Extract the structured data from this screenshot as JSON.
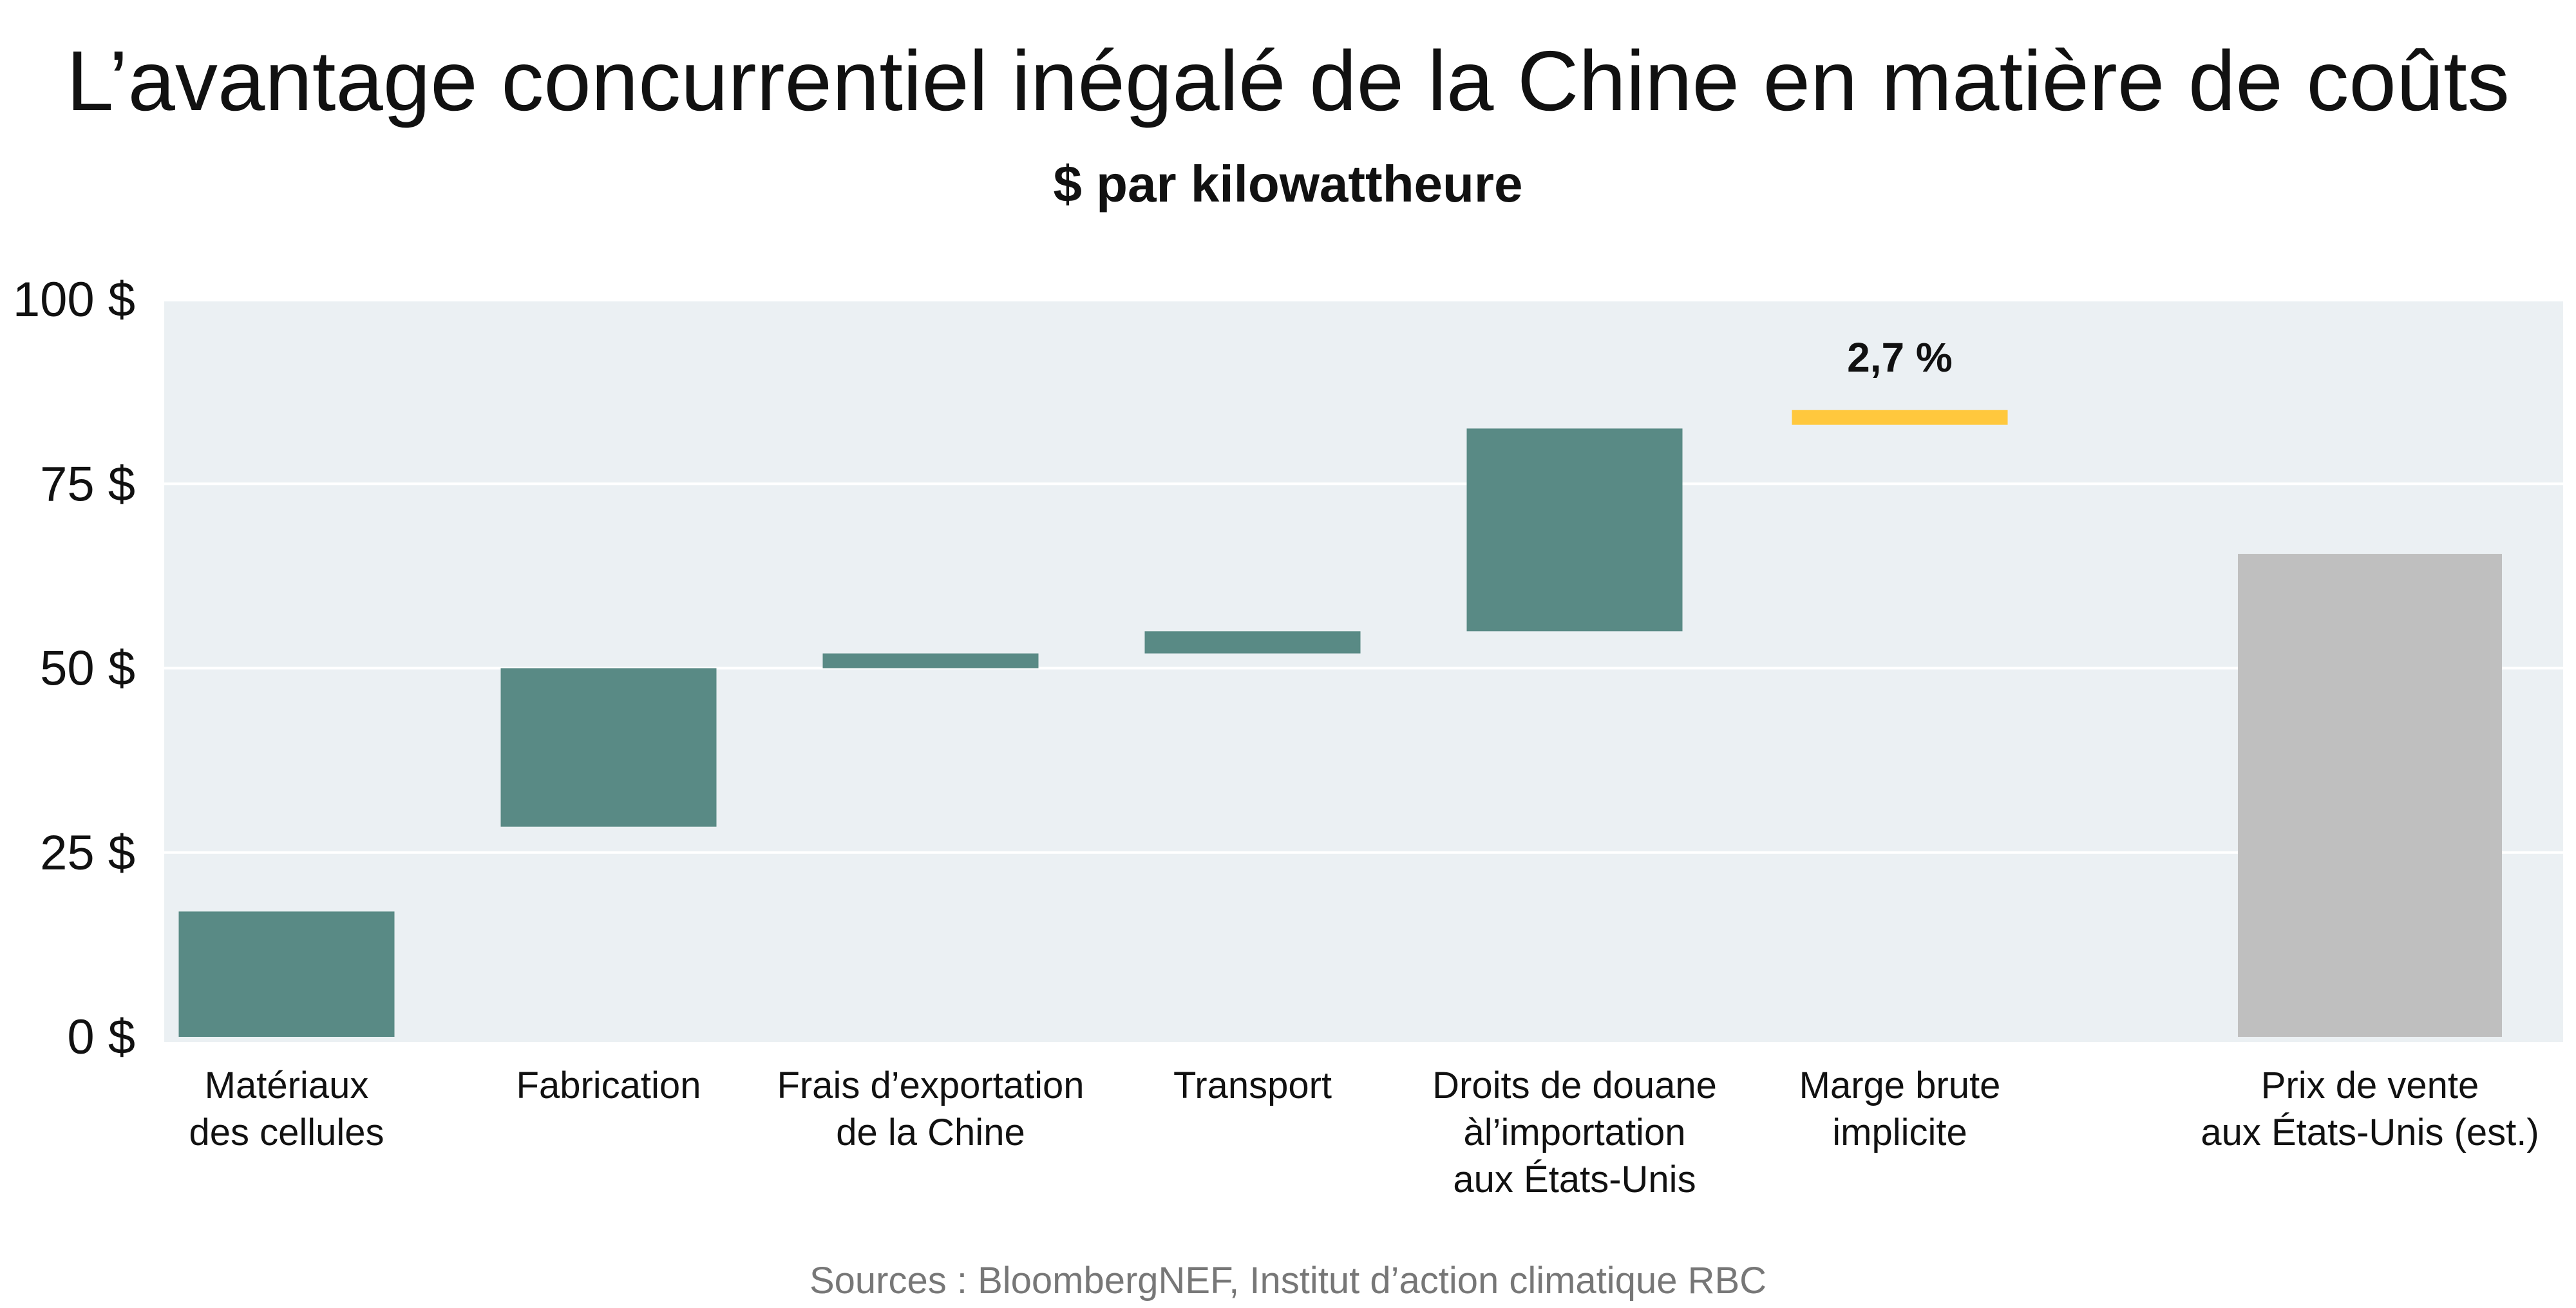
{
  "chart_data": {
    "type": "bar",
    "title": "L’avantage concurrentiel inégalé de la Chine en matière de coûts",
    "subtitle": "$ par kilowattheure",
    "source": "Sources : BloombergNEF, Institut d’action climatique RBC",
    "ylim": [
      0,
      100
    ],
    "y_ticks": [
      "0 $",
      "25 $",
      "50 $",
      "75 $",
      "100 $"
    ],
    "y_tick_values": [
      0,
      25,
      50,
      75,
      100
    ],
    "grid": true,
    "categories": [
      [
        "Matériaux",
        "des cellules"
      ],
      [
        "Fabrication"
      ],
      [
        "Frais d’exportation",
        "de la Chine"
      ],
      [
        "Transport"
      ],
      [
        "Droits de douane",
        "àl’importation",
        "aux États-Unis"
      ],
      [
        "Marge brute",
        "implicite"
      ],
      [
        "Prix de vente",
        "aux États-Unis (est.)"
      ]
    ],
    "bars": [
      {
        "start": 0,
        "end": 17,
        "kind": "step"
      },
      {
        "start": 28.5,
        "end": 50,
        "kind": "step"
      },
      {
        "start": 50,
        "end": 52,
        "kind": "step"
      },
      {
        "start": 52,
        "end": 55,
        "kind": "step"
      },
      {
        "start": 55,
        "end": 82.5,
        "kind": "step"
      },
      {
        "start": 83,
        "end": 85,
        "kind": "margin",
        "label": "2,7 %"
      },
      {
        "start": 0,
        "end": 65.5,
        "kind": "total"
      }
    ],
    "colors": {
      "step": "#598A85",
      "margin": "#FFC83D",
      "total": "#BFBFBF",
      "plot_bg": "#EBF0F3",
      "grid": "#FFFFFF"
    }
  }
}
